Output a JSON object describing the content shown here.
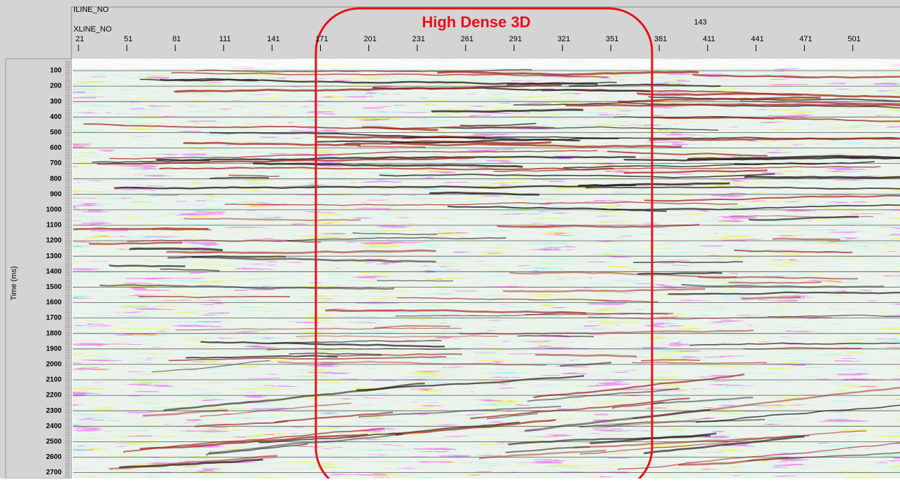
{
  "header": {
    "iline_label": "ILINE_NO",
    "xline_label": "XLINE_NO",
    "iline_value": "143"
  },
  "x_axis": {
    "ticks": [
      "21",
      "51",
      "81",
      "111",
      "141",
      "171",
      "201",
      "231",
      "261",
      "291",
      "321",
      "351",
      "381",
      "411",
      "441",
      "471",
      "501"
    ]
  },
  "y_axis": {
    "title": "Time (ms)",
    "ticks": [
      "100",
      "200",
      "300",
      "400",
      "500",
      "600",
      "700",
      "800",
      "900",
      "1000",
      "1100",
      "1200",
      "1300",
      "1400",
      "1500",
      "1600",
      "1700",
      "1800",
      "1900",
      "2000",
      "2100",
      "2200",
      "2300",
      "2400",
      "2500",
      "2600",
      "2700"
    ]
  },
  "annotation": {
    "label": "High Dense 3D"
  }
}
